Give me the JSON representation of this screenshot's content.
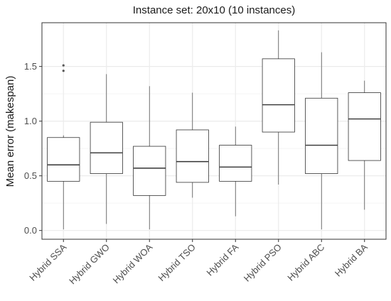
{
  "chart_data": {
    "type": "boxplot",
    "title": "Instance set: 20x10 (10 instances)",
    "ylabel": "Mean error (makespan)",
    "xlabel": "",
    "ylim": [
      -0.08,
      1.9
    ],
    "yticks": [
      0.0,
      0.5,
      1.0,
      1.5
    ],
    "ytick_labels": [
      "0.0",
      "0.5",
      "1.0",
      "1.5"
    ],
    "grid": true,
    "colors": {
      "box_stroke": "#333333",
      "grid_major": "#ebebeb",
      "grid_minor": "#f5f5f5",
      "outlier": "#555555",
      "panel_border": "#333333"
    },
    "categories": [
      "Hybrid SSA",
      "Hybrid GWO",
      "Hybrid WOA",
      "Hybrid TSO",
      "Hybrid FA",
      "Hybrid PSO",
      "Hybrid ABC",
      "Hybrid BA"
    ],
    "series": [
      {
        "category": "Hybrid SSA",
        "min": 0.01,
        "q1": 0.45,
        "median": 0.6,
        "q3": 0.85,
        "max": 0.87,
        "outliers": [
          1.46,
          1.51
        ]
      },
      {
        "category": "Hybrid GWO",
        "min": 0.06,
        "q1": 0.52,
        "median": 0.71,
        "q3": 0.99,
        "max": 1.43,
        "outliers": []
      },
      {
        "category": "Hybrid WOA",
        "min": 0.01,
        "q1": 0.32,
        "median": 0.57,
        "q3": 0.77,
        "max": 1.32,
        "outliers": []
      },
      {
        "category": "Hybrid TSO",
        "min": 0.3,
        "q1": 0.44,
        "median": 0.63,
        "q3": 0.92,
        "max": 1.26,
        "outliers": []
      },
      {
        "category": "Hybrid FA",
        "min": 0.13,
        "q1": 0.45,
        "median": 0.58,
        "q3": 0.78,
        "max": 0.95,
        "outliers": []
      },
      {
        "category": "Hybrid PSO",
        "min": 0.42,
        "q1": 0.9,
        "median": 1.15,
        "q3": 1.57,
        "max": 1.83,
        "outliers": []
      },
      {
        "category": "Hybrid ABC",
        "min": 0.01,
        "q1": 0.52,
        "median": 0.78,
        "q3": 1.21,
        "max": 1.63,
        "outliers": []
      },
      {
        "category": "Hybrid BA",
        "min": 0.19,
        "q1": 0.64,
        "median": 1.02,
        "q3": 1.26,
        "max": 1.37,
        "outliers": []
      }
    ]
  }
}
